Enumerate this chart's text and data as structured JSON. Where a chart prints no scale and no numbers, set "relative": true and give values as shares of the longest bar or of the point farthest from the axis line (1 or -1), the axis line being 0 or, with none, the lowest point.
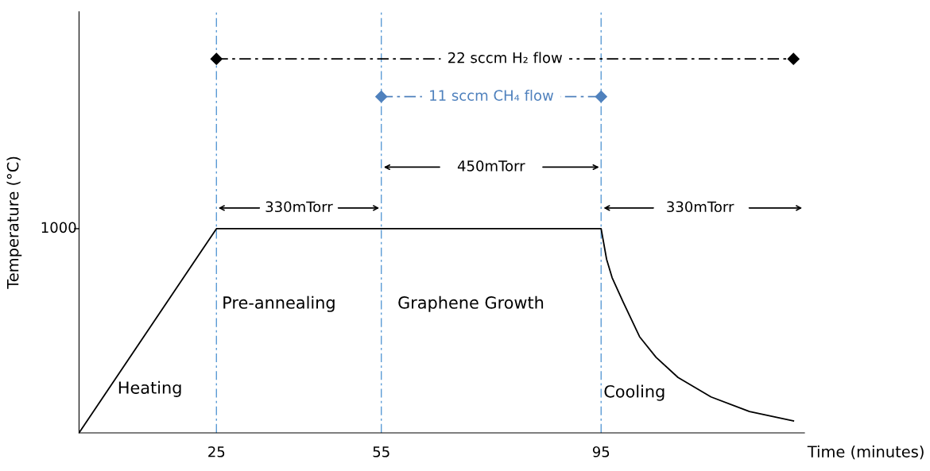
{
  "chart_data": {
    "type": "line",
    "xlabel": "Time (minutes)",
    "ylabel": "Temperature (°C)",
    "relative": true,
    "xlim": [
      0,
      132
    ],
    "xticks": [
      25,
      55,
      95
    ],
    "grid": false,
    "legend": false,
    "series": [
      {
        "color": "#000000",
        "x": [
          0,
          25,
          95,
          96,
          97,
          99,
          102,
          105,
          109,
          115,
          122,
          130
        ],
        "values": [
          0,
          0.546,
          0.546,
          0.464,
          0.415,
          0.35,
          0.257,
          0.202,
          0.148,
          0.096,
          0.057,
          0.032
        ],
        "marker": "none",
        "line_style": "solid"
      },
      {
        "name": "22 sccm H₂ flow",
        "color": "#000000",
        "x": [
          25,
          130
        ],
        "values": [
          1,
          1
        ],
        "marker": "diamond",
        "line_style": "dashed"
      },
      {
        "name": "11 sccm CH₄ flow",
        "color": "#4f81bd",
        "x": [
          55,
          95
        ],
        "values": [
          0.899,
          0.899
        ],
        "marker": "diamond",
        "line_style": "dashed"
      }
    ],
    "ref_lines": [
      {
        "axis": "x",
        "value": 25,
        "color": "#5b9bd5",
        "line_style": "dashed"
      },
      {
        "axis": "x",
        "value": 55,
        "color": "#5b9bd5",
        "line_style": "dashed"
      },
      {
        "axis": "x",
        "value": 95,
        "color": "#5b9bd5",
        "line_style": "dashed"
      }
    ],
    "annotations": [
      "330mTorr",
      "450mTorr",
      "330mTorr",
      "Heating",
      "Pre-annealing",
      "Graphene Growth",
      "Cooling",
      "1000"
    ]
  }
}
